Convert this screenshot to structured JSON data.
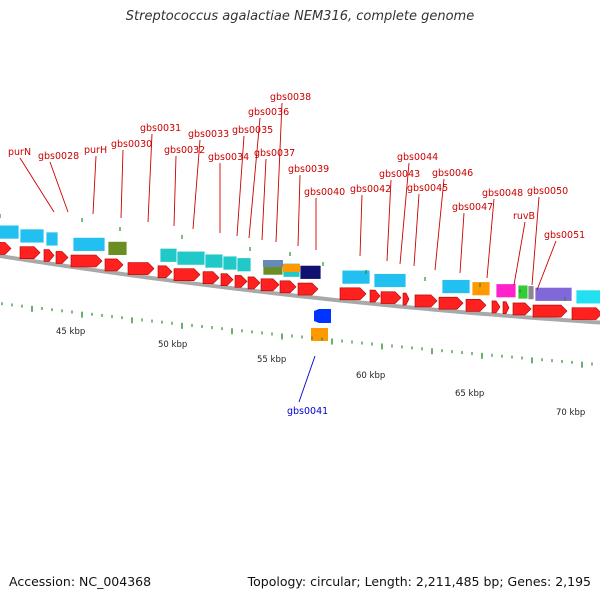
{
  "title": "Streptococcus agalactiae NEM316, complete genome",
  "accession": "Accession: NC_004368",
  "topology": "Topology: circular; Length: 2,211,485 bp; Genes: 2,195",
  "colors": {
    "label": "#cc0000",
    "reverse_label": "#0000cc",
    "backbone": "#a9a9a9",
    "tick": "#2e8b2e",
    "forward_cds": "#ff2020"
  },
  "scale_labels": [
    "45 kbp",
    "50 kbp",
    "55 kbp",
    "60 kbp",
    "65 kbp",
    "70 kbp"
  ],
  "gene_labels": [
    {
      "id": "purN",
      "strand": "+"
    },
    {
      "id": "gbs0028",
      "strand": "+"
    },
    {
      "id": "purH",
      "strand": "+"
    },
    {
      "id": "gbs0030",
      "strand": "+"
    },
    {
      "id": "gbs0031",
      "strand": "+"
    },
    {
      "id": "gbs0032",
      "strand": "+"
    },
    {
      "id": "gbs0033",
      "strand": "+"
    },
    {
      "id": "gbs0034",
      "strand": "+"
    },
    {
      "id": "gbs0035",
      "strand": "+"
    },
    {
      "id": "gbs0036",
      "strand": "+"
    },
    {
      "id": "gbs0037",
      "strand": "+"
    },
    {
      "id": "gbs0038",
      "strand": "+"
    },
    {
      "id": "gbs0039",
      "strand": "+"
    },
    {
      "id": "gbs0040",
      "strand": "+"
    },
    {
      "id": "gbs0041",
      "strand": "-"
    },
    {
      "id": "gbs0042",
      "strand": "+"
    },
    {
      "id": "gbs0043",
      "strand": "+"
    },
    {
      "id": "gbs0044",
      "strand": "+"
    },
    {
      "id": "gbs0045",
      "strand": "+"
    },
    {
      "id": "gbs0046",
      "strand": "+"
    },
    {
      "id": "gbs0047",
      "strand": "+"
    },
    {
      "id": "gbs0048",
      "strand": "+"
    },
    {
      "id": "ruvB",
      "strand": "+"
    },
    {
      "id": "gbs0050",
      "strand": "+"
    },
    {
      "id": "gbs0051",
      "strand": "+"
    }
  ]
}
